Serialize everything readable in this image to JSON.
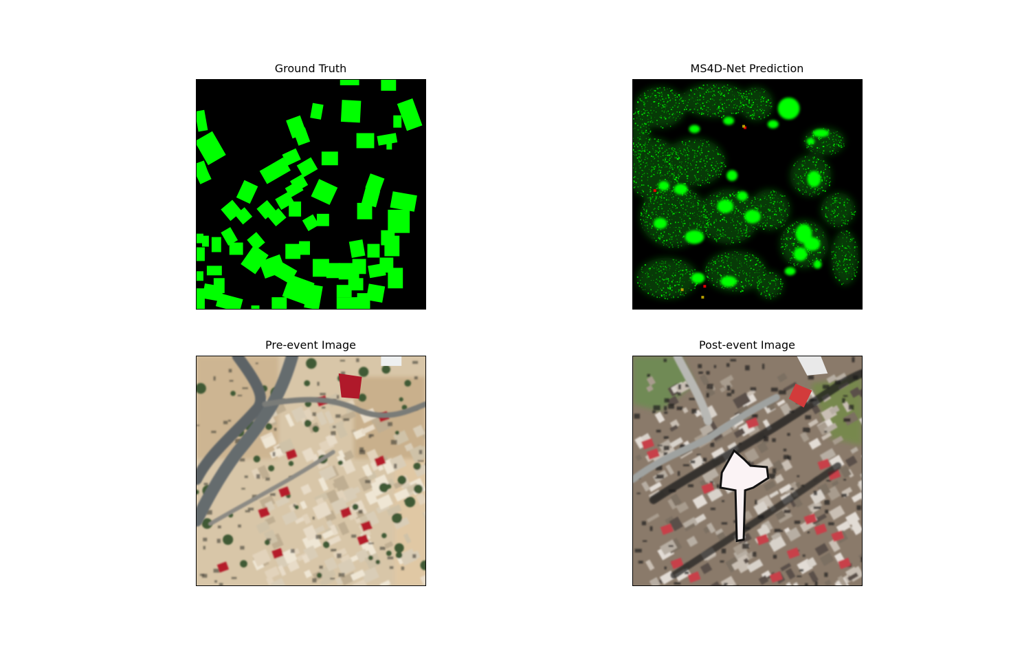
{
  "panels": {
    "ground_truth": {
      "title": "Ground Truth"
    },
    "prediction": {
      "title": "MS4D-Net Prediction"
    },
    "pre_event": {
      "title": "Pre-event Image"
    },
    "post_event": {
      "title": "Post-event Image"
    }
  },
  "colors": {
    "background": "#000000",
    "building": "#00ff00",
    "damage": "#e00000"
  }
}
